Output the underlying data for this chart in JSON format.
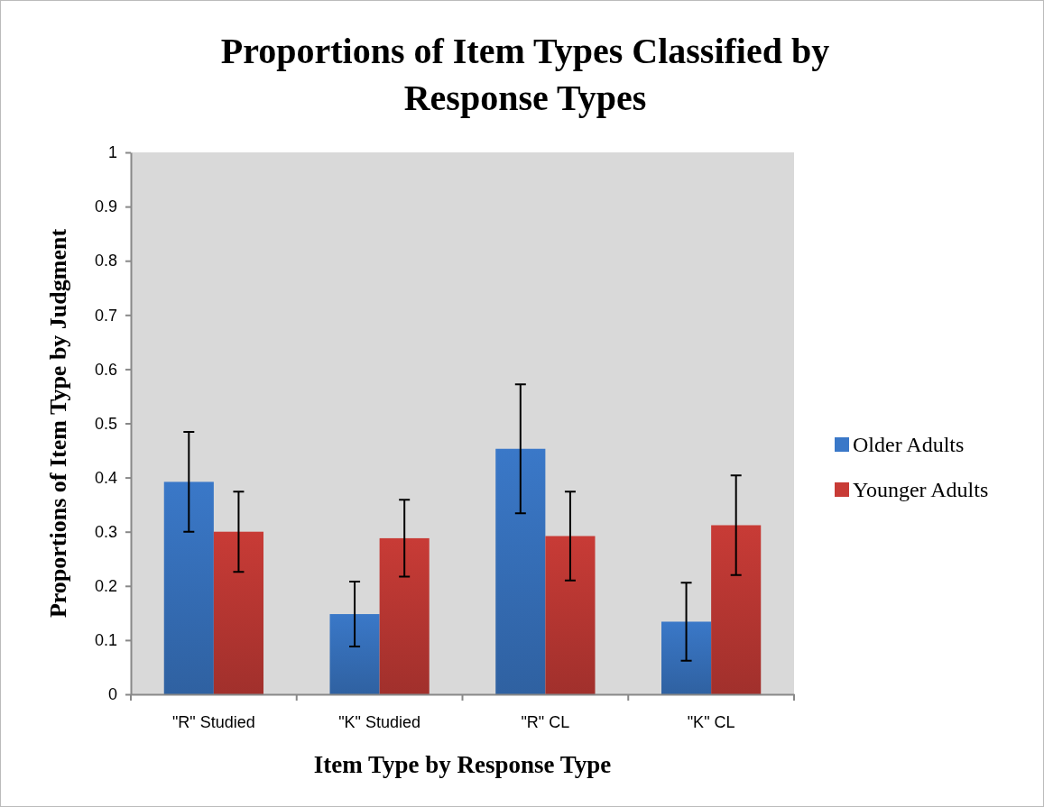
{
  "chart_data": {
    "type": "bar",
    "title": "Proportions of Item Types Classified by Response Types",
    "xlabel": "Item Type by Response Type",
    "ylabel": "Proportions of Item Type by Judgment",
    "categories": [
      "\"R\" Studied",
      "\"K\" Studied",
      "\"R\" CL",
      "\"K\" CL"
    ],
    "series": [
      {
        "name": "Older Adults",
        "color": "#3a78c8",
        "values": [
          0.392,
          0.148,
          0.453,
          0.134
        ],
        "errors": [
          0.092,
          0.06,
          0.119,
          0.072
        ]
      },
      {
        "name": "Younger Adults",
        "color": "#c83b36",
        "values": [
          0.3,
          0.288,
          0.292,
          0.312
        ],
        "errors": [
          0.074,
          0.071,
          0.082,
          0.092
        ]
      }
    ],
    "ylim": [
      0,
      1
    ],
    "yticks": [
      0,
      0.1,
      0.2,
      0.3,
      0.4,
      0.5,
      0.6,
      0.7,
      0.8,
      0.9,
      1
    ],
    "grid": false,
    "legend": "right"
  }
}
